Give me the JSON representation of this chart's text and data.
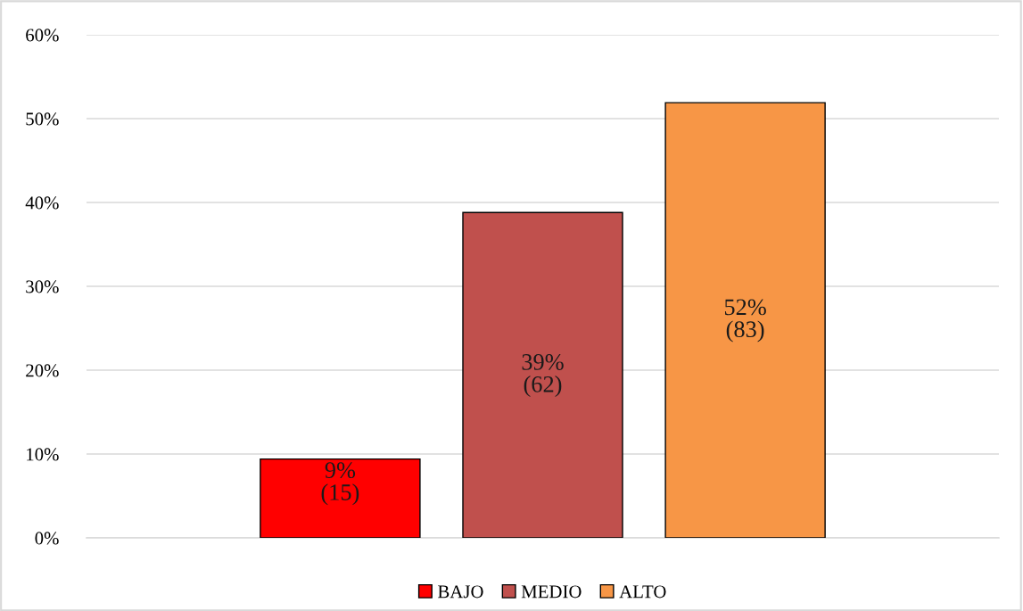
{
  "chart_data": {
    "type": "bar",
    "categories": [
      null
    ],
    "series": [
      {
        "name": "BAJO",
        "color": "#ff0000",
        "values": [
          9.4
        ],
        "value_labels": [
          "9%\n(15)"
        ]
      },
      {
        "name": "MEDIO",
        "color": "#c0504d",
        "values": [
          38.8
        ],
        "value_labels": [
          "39%\n(62)"
        ]
      },
      {
        "name": "ALTO",
        "color": "#f79646",
        "values": [
          51.9
        ],
        "value_labels": [
          "52%\n(83)"
        ]
      }
    ],
    "ylim": [
      0,
      60
    ],
    "yticks": [
      {
        "value": 0,
        "label": "0%"
      },
      {
        "value": 10,
        "label": "10%"
      },
      {
        "value": 20,
        "label": "20%"
      },
      {
        "value": 30,
        "label": "30%"
      },
      {
        "value": 40,
        "label": "40%"
      },
      {
        "value": 50,
        "label": "50%"
      },
      {
        "value": 60,
        "label": "60%"
      }
    ],
    "grid": "y",
    "legend": "bottom"
  }
}
